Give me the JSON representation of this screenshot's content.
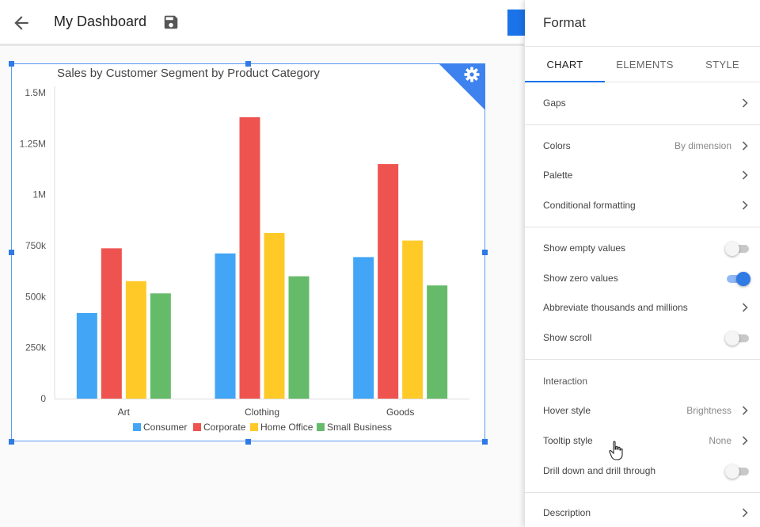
{
  "header": {
    "title": "My Dashboard",
    "back_icon": "arrow-back-icon",
    "save_icon": "save-icon"
  },
  "widget": {
    "settings_icon": "gear-icon",
    "accent_color": "#3d82ee"
  },
  "chart_data": {
    "type": "bar",
    "title": "Sales by Customer Segment by Product Category",
    "categories": [
      "Art",
      "Clothing",
      "Goods"
    ],
    "series": [
      {
        "name": "Consumer",
        "color": "#42a5f5",
        "values": [
          420000,
          712000,
          694000
        ]
      },
      {
        "name": "Corporate",
        "color": "#ef5350",
        "values": [
          737000,
          1380000,
          1150000
        ]
      },
      {
        "name": "Home Office",
        "color": "#ffca28",
        "values": [
          576000,
          812000,
          775000
        ]
      },
      {
        "name": "Small Business",
        "color": "#66bb6a",
        "values": [
          516000,
          600000,
          555000
        ]
      }
    ],
    "ylim": [
      0,
      1500000
    ],
    "yticks": [
      0,
      250000,
      500000,
      750000,
      1000000,
      1250000,
      1500000
    ],
    "ytick_labels": [
      "0",
      "250k",
      "500k",
      "750k",
      "1M",
      "1.25M",
      "1.5M"
    ],
    "grid": false,
    "legend": "bottom"
  },
  "panel": {
    "title": "Format",
    "tabs": [
      {
        "label": "CHART",
        "active": true
      },
      {
        "label": "ELEMENTS",
        "active": false
      },
      {
        "label": "STYLE",
        "active": false
      }
    ],
    "gaps": {
      "label": "Gaps"
    },
    "colors": {
      "label": "Colors",
      "value": "By dimension"
    },
    "palette": {
      "label": "Palette"
    },
    "conditional": {
      "label": "Conditional formatting"
    },
    "show_empty": {
      "label": "Show empty values",
      "on": false
    },
    "show_zero": {
      "label": "Show zero values",
      "on": true
    },
    "abbreviate": {
      "label": "Abbreviate thousands and millions"
    },
    "show_scroll": {
      "label": "Show scroll",
      "on": false
    },
    "interaction": {
      "label": "Interaction"
    },
    "hover_style": {
      "label": "Hover style",
      "value": "Brightness"
    },
    "tooltip_style": {
      "label": "Tooltip style",
      "value": "None"
    },
    "drill": {
      "label": "Drill down and drill through",
      "on": false
    },
    "description": {
      "label": "Description"
    }
  },
  "colors": {
    "accent": "#1a73e8",
    "toggle_on": "#2f7ae5"
  }
}
